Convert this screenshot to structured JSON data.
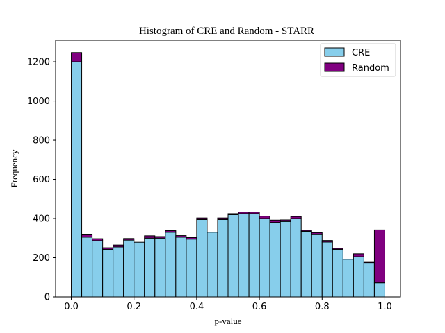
{
  "chart_data": {
    "type": "bar",
    "stacked": true,
    "title": "Histogram of CRE and Random - STARR",
    "xlabel": "p-value",
    "ylabel": "Frequency",
    "xlim": [
      -0.05,
      1.05
    ],
    "ylim": [
      0,
      1310
    ],
    "bin_width": 0.0333,
    "bins_start": [
      0.0,
      0.0333,
      0.0667,
      0.1,
      0.1333,
      0.1667,
      0.2,
      0.2333,
      0.2667,
      0.3,
      0.3333,
      0.3667,
      0.4,
      0.4333,
      0.4667,
      0.5,
      0.5333,
      0.5667,
      0.6,
      0.6333,
      0.6667,
      0.7,
      0.7333,
      0.7667,
      0.8,
      0.8333,
      0.8667,
      0.9,
      0.9333,
      0.9667
    ],
    "x_ticks": [
      "0.0",
      "0.2",
      "0.4",
      "0.6",
      "0.8",
      "1.0"
    ],
    "x_tick_values": [
      0.0,
      0.2,
      0.4,
      0.6,
      0.8,
      1.0
    ],
    "y_ticks": [
      "0",
      "200",
      "400",
      "600",
      "800",
      "1000",
      "1200"
    ],
    "y_tick_values": [
      0,
      200,
      400,
      600,
      800,
      1000,
      1200
    ],
    "legend_position": "top-right",
    "series": [
      {
        "name": "CRE",
        "color": "#87CEEB",
        "values": [
          1200,
          305,
          287,
          243,
          255,
          290,
          279,
          300,
          300,
          330,
          305,
          295,
          395,
          330,
          395,
          420,
          425,
          425,
          400,
          380,
          385,
          400,
          335,
          318,
          280,
          243,
          192,
          205,
          175,
          72
        ]
      },
      {
        "name": "Random",
        "color": "#800080",
        "values": [
          47,
          12,
          10,
          8,
          10,
          8,
          0,
          12,
          8,
          8,
          8,
          8,
          8,
          0,
          8,
          5,
          8,
          8,
          12,
          12,
          8,
          10,
          5,
          10,
          8,
          5,
          0,
          15,
          5,
          270
        ]
      }
    ]
  }
}
